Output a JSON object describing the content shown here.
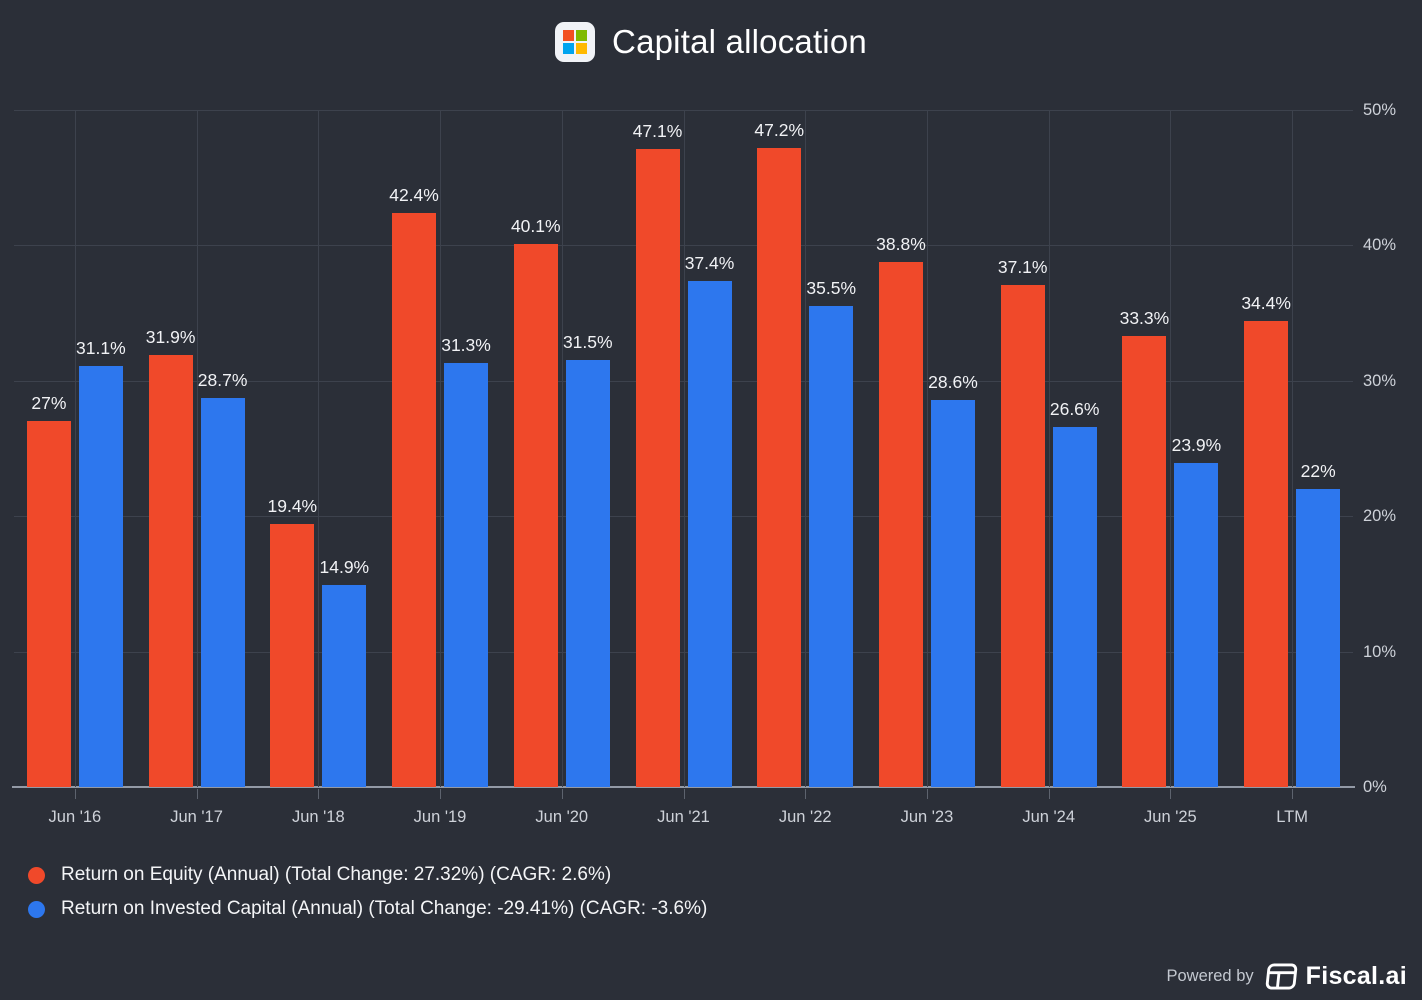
{
  "header": {
    "title": "Capital allocation",
    "icon": "microsoft-logo"
  },
  "chart_data": {
    "type": "bar",
    "title": "Capital allocation",
    "categories": [
      "Jun '16",
      "Jun '17",
      "Jun '18",
      "Jun '19",
      "Jun '20",
      "Jun '21",
      "Jun '22",
      "Jun '23",
      "Jun '24",
      "Jun '25",
      "LTM"
    ],
    "series": [
      {
        "name": "Return on Equity (Annual) (Total Change: 27.32%) (CAGR: 2.6%)",
        "color": "#f0492a",
        "values": [
          27,
          31.9,
          19.4,
          42.4,
          40.1,
          47.1,
          47.2,
          38.8,
          37.1,
          33.3,
          34.4
        ],
        "labels": [
          "27%",
          "31.9%",
          "19.4%",
          "42.4%",
          "40.1%",
          "47.1%",
          "47.2%",
          "38.8%",
          "37.1%",
          "33.3%",
          "34.4%"
        ]
      },
      {
        "name": "Return on Invested Capital (Annual) (Total Change: -29.41%) (CAGR: -3.6%)",
        "color": "#2d77ee",
        "values": [
          31.1,
          28.7,
          14.9,
          31.3,
          31.5,
          37.4,
          35.5,
          28.6,
          26.6,
          23.9,
          22
        ],
        "labels": [
          "31.1%",
          "28.7%",
          "14.9%",
          "31.3%",
          "31.5%",
          "37.4%",
          "35.5%",
          "28.6%",
          "26.6%",
          "23.9%",
          "22%"
        ]
      }
    ],
    "ylim": [
      0,
      50
    ],
    "ytick_values": [
      0,
      10,
      20,
      30,
      40,
      50
    ],
    "ytick_labels": [
      "0%",
      "10%",
      "20%",
      "30%",
      "40%",
      "50%"
    ],
    "y_axis_side": "right",
    "grid": true,
    "legend_position": "bottom-left"
  },
  "footer": {
    "powered_by": "Powered by",
    "brand": "Fiscal.ai"
  },
  "colors": {
    "background": "#2b2f38",
    "roe": "#f0492a",
    "roic": "#2d77ee",
    "gridline": "#3d424d",
    "axis_line": "#939aa6",
    "ms_red": "#f25022",
    "ms_green": "#7fba00",
    "ms_blue": "#00a4ef",
    "ms_yellow": "#ffb900"
  }
}
